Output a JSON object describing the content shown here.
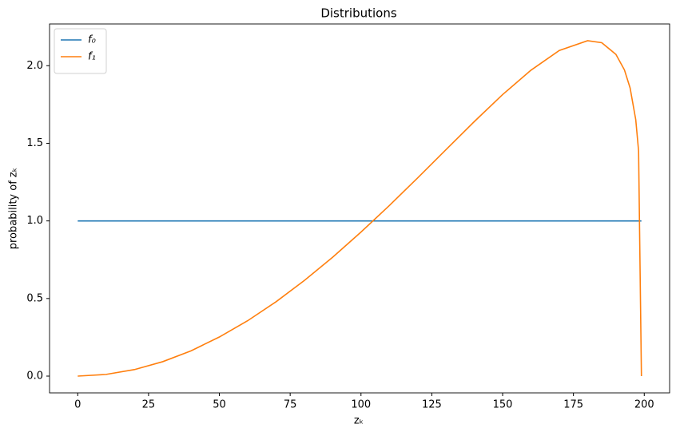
{
  "chart_data": {
    "type": "line",
    "title": "Distributions",
    "x_label": "zₖ",
    "y_label": "probability of zₖ",
    "xlim": [
      -9.95,
      208.95
    ],
    "ylim": [
      -0.108,
      2.269
    ],
    "xticks": [
      0,
      25,
      50,
      75,
      100,
      125,
      150,
      175,
      200
    ],
    "yticks": [
      {
        "value": 0,
        "label": "0.0"
      },
      0.5,
      {
        "value": 1,
        "label": "1.0"
      },
      1.5,
      {
        "value": 2,
        "label": "2.0"
      }
    ],
    "legend": "upper left",
    "grid": false,
    "series": [
      {
        "name": "f₀",
        "color": "#1f77b4",
        "x": [
          0,
          199
        ],
        "values": [
          1,
          1
        ]
      },
      {
        "name": "f₁",
        "color": "#ff7f0e",
        "x": [
          0,
          10,
          20,
          30,
          40,
          50,
          60,
          70,
          80,
          90,
          100,
          110,
          120,
          130,
          140,
          150,
          160,
          170,
          180,
          185,
          190,
          193,
          195,
          197,
          198,
          199
        ],
        "values": [
          0,
          0.011,
          0.042,
          0.093,
          0.163,
          0.252,
          0.357,
          0.479,
          0.616,
          0.766,
          0.928,
          1.099,
          1.277,
          1.459,
          1.64,
          1.814,
          1.971,
          2.098,
          2.161,
          2.148,
          2.073,
          1.973,
          1.857,
          1.652,
          1.451,
          0
        ]
      }
    ]
  }
}
